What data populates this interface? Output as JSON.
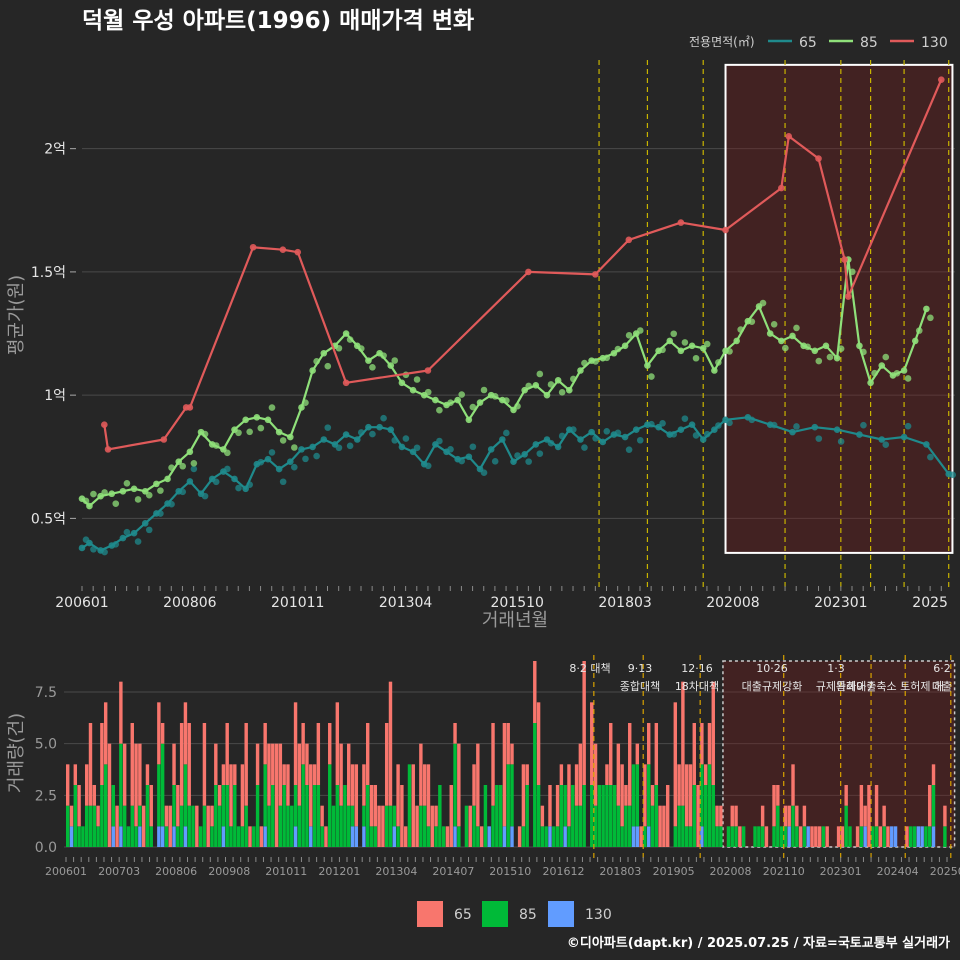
{
  "chart_data": [
    {
      "type": "line",
      "title": "덕월 우성 아파트(1996) 매매가격 변화",
      "xlabel": "거래년월",
      "ylabel": "평균가(원)",
      "x_ticks": [
        "200601",
        "200806",
        "201011",
        "201304",
        "201510",
        "201803",
        "202008",
        "202301",
        "2025"
      ],
      "y_ticks": [
        "0.5억",
        "1억",
        "1.5억",
        "2억"
      ],
      "ylim_eok": [
        0.25,
        2.38
      ],
      "legend_title": "전용면적(㎡)",
      "legend_position": "top-right",
      "grid": true,
      "highlight_range": [
        "202006",
        "202507"
      ],
      "policy_lines": [
        "201708",
        "201809",
        "201912",
        "202110",
        "202301",
        "202309",
        "202406",
        "202506"
      ],
      "series": [
        {
          "name": "65",
          "color": "#1f8a8c",
          "points": [
            [
              "200601",
              0.38
            ],
            [
              "200603",
              0.4
            ],
            [
              "200606",
              0.37
            ],
            [
              "200609",
              0.39
            ],
            [
              "200612",
              0.42
            ],
            [
              "200703",
              0.44
            ],
            [
              "200706",
              0.48
            ],
            [
              "200709",
              0.52
            ],
            [
              "200712",
              0.56
            ],
            [
              "200803",
              0.61
            ],
            [
              "200806",
              0.65
            ],
            [
              "200809",
              0.6
            ],
            [
              "200812",
              0.66
            ],
            [
              "200903",
              0.69
            ],
            [
              "200906",
              0.66
            ],
            [
              "200909",
              0.62
            ],
            [
              "200912",
              0.72
            ],
            [
              "201003",
              0.74
            ],
            [
              "201006",
              0.7
            ],
            [
              "201009",
              0.73
            ],
            [
              "201012",
              0.78
            ],
            [
              "201103",
              0.79
            ],
            [
              "201106",
              0.82
            ],
            [
              "201109",
              0.8
            ],
            [
              "201112",
              0.84
            ],
            [
              "201203",
              0.82
            ],
            [
              "201206",
              0.87
            ],
            [
              "201209",
              0.87
            ],
            [
              "201212",
              0.86
            ],
            [
              "201303",
              0.79
            ],
            [
              "201306",
              0.77
            ],
            [
              "201309",
              0.72
            ],
            [
              "201312",
              0.8
            ],
            [
              "201403",
              0.77
            ],
            [
              "201406",
              0.74
            ],
            [
              "201409",
              0.75
            ],
            [
              "201412",
              0.7
            ],
            [
              "201503",
              0.78
            ],
            [
              "201506",
              0.82
            ],
            [
              "201509",
              0.73
            ],
            [
              "201512",
              0.76
            ],
            [
              "201603",
              0.8
            ],
            [
              "201606",
              0.82
            ],
            [
              "201609",
              0.79
            ],
            [
              "201612",
              0.86
            ],
            [
              "201703",
              0.82
            ],
            [
              "201706",
              0.85
            ],
            [
              "201709",
              0.81
            ],
            [
              "201712",
              0.84
            ],
            [
              "201803",
              0.83
            ],
            [
              "201806",
              0.86
            ],
            [
              "201809",
              0.88
            ],
            [
              "201812",
              0.87
            ],
            [
              "201903",
              0.84
            ],
            [
              "201906",
              0.86
            ],
            [
              "201909",
              0.88
            ],
            [
              "201912",
              0.82
            ],
            [
              "202003",
              0.86
            ],
            [
              "202006",
              0.9
            ],
            [
              "202012",
              0.91
            ],
            [
              "202106",
              0.88
            ],
            [
              "202112",
              0.85
            ],
            [
              "202206",
              0.87
            ],
            [
              "202212",
              0.86
            ],
            [
              "202306",
              0.84
            ],
            [
              "202312",
              0.82
            ],
            [
              "202406",
              0.83
            ],
            [
              "202412",
              0.8
            ],
            [
              "202506",
              0.68
            ]
          ]
        },
        {
          "name": "85",
          "color": "#8fe07a",
          "points": [
            [
              "200601",
              0.58
            ],
            [
              "200603",
              0.55
            ],
            [
              "200606",
              0.59
            ],
            [
              "200609",
              0.6
            ],
            [
              "200612",
              0.61
            ],
            [
              "200703",
              0.62
            ],
            [
              "200706",
              0.61
            ],
            [
              "200709",
              0.64
            ],
            [
              "200712",
              0.66
            ],
            [
              "200803",
              0.73
            ],
            [
              "200806",
              0.77
            ],
            [
              "200809",
              0.85
            ],
            [
              "200812",
              0.8
            ],
            [
              "200903",
              0.78
            ],
            [
              "200906",
              0.86
            ],
            [
              "200909",
              0.9
            ],
            [
              "200912",
              0.91
            ],
            [
              "201003",
              0.9
            ],
            [
              "201006",
              0.85
            ],
            [
              "201009",
              0.83
            ],
            [
              "201012",
              0.95
            ],
            [
              "201103",
              1.1
            ],
            [
              "201106",
              1.17
            ],
            [
              "201109",
              1.2
            ],
            [
              "201112",
              1.25
            ],
            [
              "201203",
              1.2
            ],
            [
              "201206",
              1.14
            ],
            [
              "201209",
              1.17
            ],
            [
              "201212",
              1.12
            ],
            [
              "201303",
              1.05
            ],
            [
              "201306",
              1.02
            ],
            [
              "201309",
              1.0
            ],
            [
              "201312",
              0.98
            ],
            [
              "201403",
              0.96
            ],
            [
              "201406",
              0.98
            ],
            [
              "201409",
              0.9
            ],
            [
              "201412",
              0.97
            ],
            [
              "201503",
              1.0
            ],
            [
              "201506",
              0.98
            ],
            [
              "201509",
              0.94
            ],
            [
              "201512",
              1.02
            ],
            [
              "201603",
              1.04
            ],
            [
              "201606",
              1.0
            ],
            [
              "201609",
              1.06
            ],
            [
              "201612",
              1.02
            ],
            [
              "201703",
              1.1
            ],
            [
              "201706",
              1.14
            ],
            [
              "201709",
              1.15
            ],
            [
              "201712",
              1.17
            ],
            [
              "201803",
              1.2
            ],
            [
              "201806",
              1.25
            ],
            [
              "201809",
              1.12
            ],
            [
              "201812",
              1.18
            ],
            [
              "201903",
              1.22
            ],
            [
              "201906",
              1.18
            ],
            [
              "201909",
              1.2
            ],
            [
              "201912",
              1.19
            ],
            [
              "202003",
              1.1
            ],
            [
              "202006",
              1.18
            ],
            [
              "202009",
              1.22
            ],
            [
              "202012",
              1.3
            ],
            [
              "202103",
              1.36
            ],
            [
              "202106",
              1.25
            ],
            [
              "202109",
              1.22
            ],
            [
              "202112",
              1.24
            ],
            [
              "202203",
              1.2
            ],
            [
              "202206",
              1.18
            ],
            [
              "202209",
              1.2
            ],
            [
              "202212",
              1.15
            ],
            [
              "202303",
              1.55
            ],
            [
              "202306",
              1.2
            ],
            [
              "202309",
              1.05
            ],
            [
              "202312",
              1.12
            ],
            [
              "202403",
              1.08
            ],
            [
              "202406",
              1.1
            ],
            [
              "202409",
              1.22
            ],
            [
              "202412",
              1.35
            ]
          ]
        },
        {
          "name": "130",
          "color": "#e05a5a",
          "points": [
            [
              "200607",
              0.88
            ],
            [
              "200608",
              0.78
            ],
            [
              "200711",
              0.82
            ],
            [
              "200805",
              0.95
            ],
            [
              "200806",
              0.95
            ],
            [
              "200911",
              1.6
            ],
            [
              "201007",
              1.59
            ],
            [
              "201011",
              1.58
            ],
            [
              "201112",
              1.05
            ],
            [
              "201310",
              1.1
            ],
            [
              "201601",
              1.5
            ],
            [
              "201707",
              1.49
            ],
            [
              "201804",
              1.63
            ],
            [
              "201906",
              1.7
            ],
            [
              "202006",
              1.67
            ],
            [
              "202109",
              1.84
            ],
            [
              "202111",
              2.05
            ],
            [
              "202207",
              1.96
            ],
            [
              "202302",
              1.55
            ],
            [
              "202303",
              1.4
            ],
            [
              "202504",
              2.28
            ]
          ]
        }
      ]
    },
    {
      "type": "bar",
      "stacked": true,
      "xlabel": "",
      "ylabel": "거래량(건)",
      "x_ticks": [
        "200601",
        "200703",
        "200806",
        "200908",
        "201011",
        "201201",
        "201304",
        "201407",
        "201510",
        "201612",
        "201803",
        "201905",
        "202008",
        "202110",
        "202301",
        "202404",
        "202506"
      ],
      "y_ticks": [
        "0.0",
        "2.5",
        "5.0",
        "7.5"
      ],
      "ylim": [
        0,
        9
      ],
      "legend_position": "bottom",
      "series_names": [
        "65",
        "85",
        "130"
      ],
      "series_colors": [
        "#f8766d",
        "#00ba38",
        "#619cff"
      ],
      "annotations": [
        {
          "date": "201708",
          "line1": "8·2 대책",
          "line2": ""
        },
        {
          "date": "201809",
          "line1": "9·13",
          "line2": "종합대책"
        },
        {
          "date": "201912",
          "line1": "12·16",
          "line2": "18차대책"
        },
        {
          "date": "202110",
          "line1": "10·26",
          "line2": "대출규제강화"
        },
        {
          "date": "202301",
          "line1": "1·3",
          "line2": "규제완화"
        },
        {
          "date": "202309",
          "line1": "",
          "line2": "9·7"
        },
        {
          "date": "202406",
          "line1": "",
          "line2": "특례대출축소 토허제 해"
        },
        {
          "date": "202506",
          "line1": "6·2",
          "line2": "대출"
        }
      ],
      "highlight_range": [
        "202006",
        "202507"
      ]
    }
  ],
  "credit": "©디아파트(dapt.kr) / 2025.07.25 / 자료=국토교통부 실거래가"
}
